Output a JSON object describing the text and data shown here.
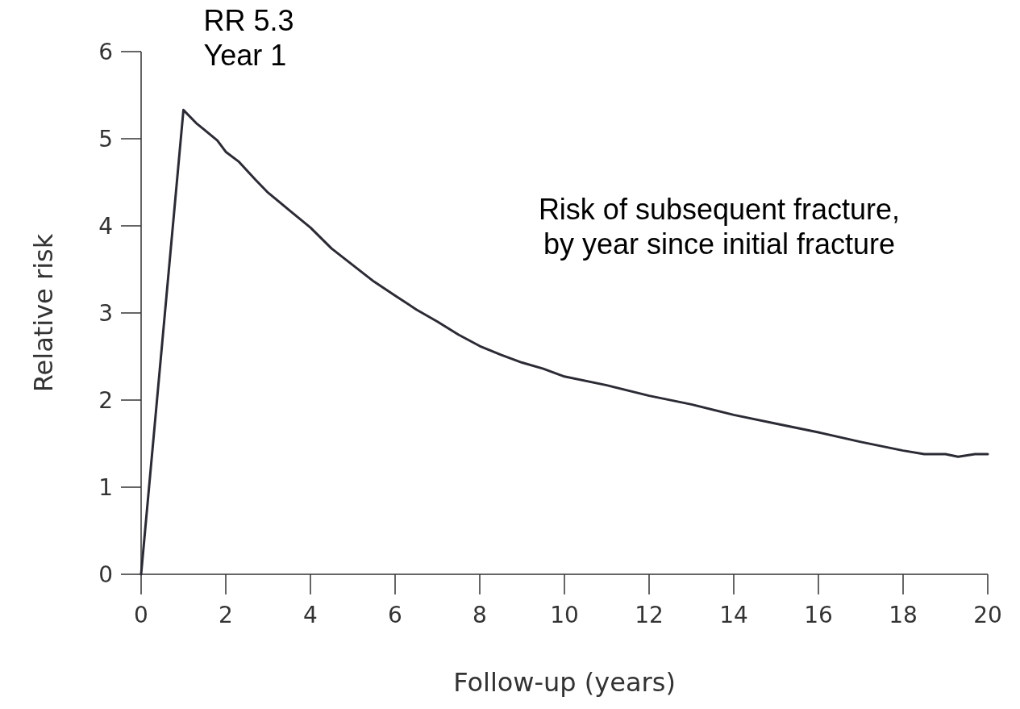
{
  "chart_data": {
    "type": "line",
    "xlabel": "Follow-up (years)",
    "ylabel": "Relative risk",
    "x": [
      0,
      1,
      1.3,
      1.5,
      1.8,
      2,
      2.3,
      2.7,
      3,
      3.5,
      4,
      4.5,
      5,
      5.5,
      6,
      6.5,
      7,
      7.5,
      8,
      8.5,
      9,
      9.5,
      10,
      11,
      12,
      13,
      14,
      15,
      16,
      17,
      18,
      18.5,
      19,
      19.3,
      19.7,
      20
    ],
    "series": [
      {
        "color": "#2b2b35",
        "values": [
          0,
          5.33,
          5.18,
          5.1,
          4.98,
          4.85,
          4.74,
          4.53,
          4.38,
          4.18,
          3.98,
          3.74,
          3.55,
          3.36,
          3.2,
          3.04,
          2.9,
          2.75,
          2.62,
          2.52,
          2.43,
          2.36,
          2.27,
          2.17,
          2.05,
          1.95,
          1.83,
          1.73,
          1.63,
          1.52,
          1.42,
          1.38,
          1.38,
          1.35,
          1.38,
          1.38
        ]
      }
    ],
    "xlim": [
      0,
      20
    ],
    "ylim": [
      0,
      6
    ],
    "xticks": [
      0,
      2,
      4,
      6,
      8,
      10,
      12,
      14,
      16,
      18,
      20
    ],
    "yticks": [
      0,
      1,
      2,
      3,
      4,
      5,
      6
    ],
    "annotations": [
      {
        "text": "RR 5.3\nYear 1",
        "x": 1,
        "y": 5.33
      },
      "Risk of subsequent fracture,\nby year since initial fracture"
    ],
    "grid": false,
    "marker": "none",
    "line_style": "solid"
  }
}
